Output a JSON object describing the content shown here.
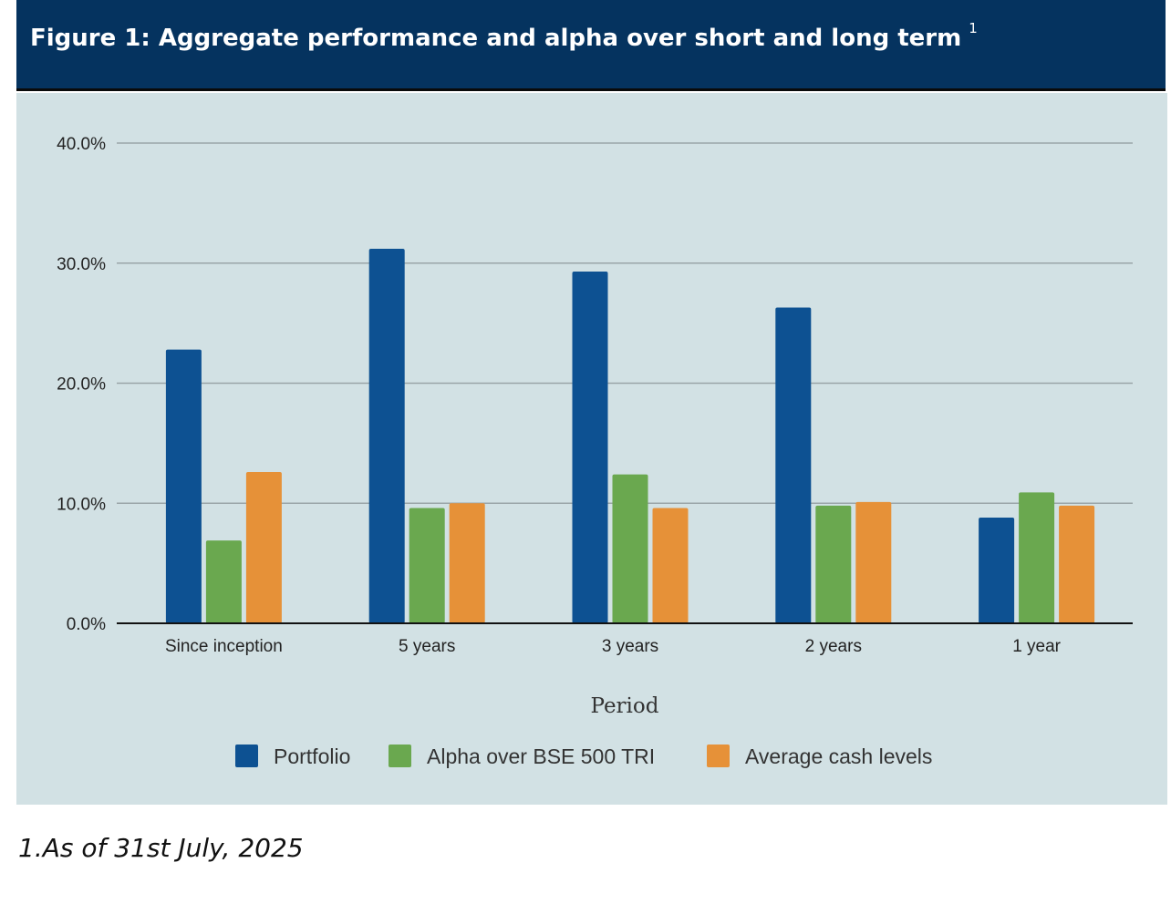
{
  "header": {
    "title": "Figure 1:  Aggregate performance and alpha over short and long term",
    "superscript": "1"
  },
  "footnote": "1.As of 31st July, 2025",
  "colors": {
    "header_bg": "#05335f",
    "panel_bg": "#d2e1e4",
    "portfolio": "#0d5192",
    "alpha": "#6aa84f",
    "cash": "#e69138"
  },
  "chart_data": {
    "type": "bar",
    "title": "",
    "xlabel": "Period",
    "ylabel": "",
    "ylim": [
      0,
      40
    ],
    "yticks": [
      0,
      10,
      20,
      30,
      40
    ],
    "ytick_labels": [
      "0.0%",
      "10.0%",
      "20.0%",
      "30.0%",
      "40.0%"
    ],
    "grid": true,
    "legend_position": "bottom",
    "categories": [
      "Since inception",
      "5 years",
      "3 years",
      "2 years",
      "1 year"
    ],
    "series": [
      {
        "name": "Portfolio",
        "color": "#0d5192",
        "values": [
          22.8,
          31.2,
          29.3,
          26.3,
          8.8
        ]
      },
      {
        "name": "Alpha over BSE 500 TRI",
        "color": "#6aa84f",
        "values": [
          6.9,
          9.6,
          12.4,
          9.8,
          10.9
        ]
      },
      {
        "name": "Average cash levels",
        "color": "#e69138",
        "values": [
          12.6,
          10.0,
          9.6,
          10.1,
          9.8
        ]
      }
    ]
  }
}
